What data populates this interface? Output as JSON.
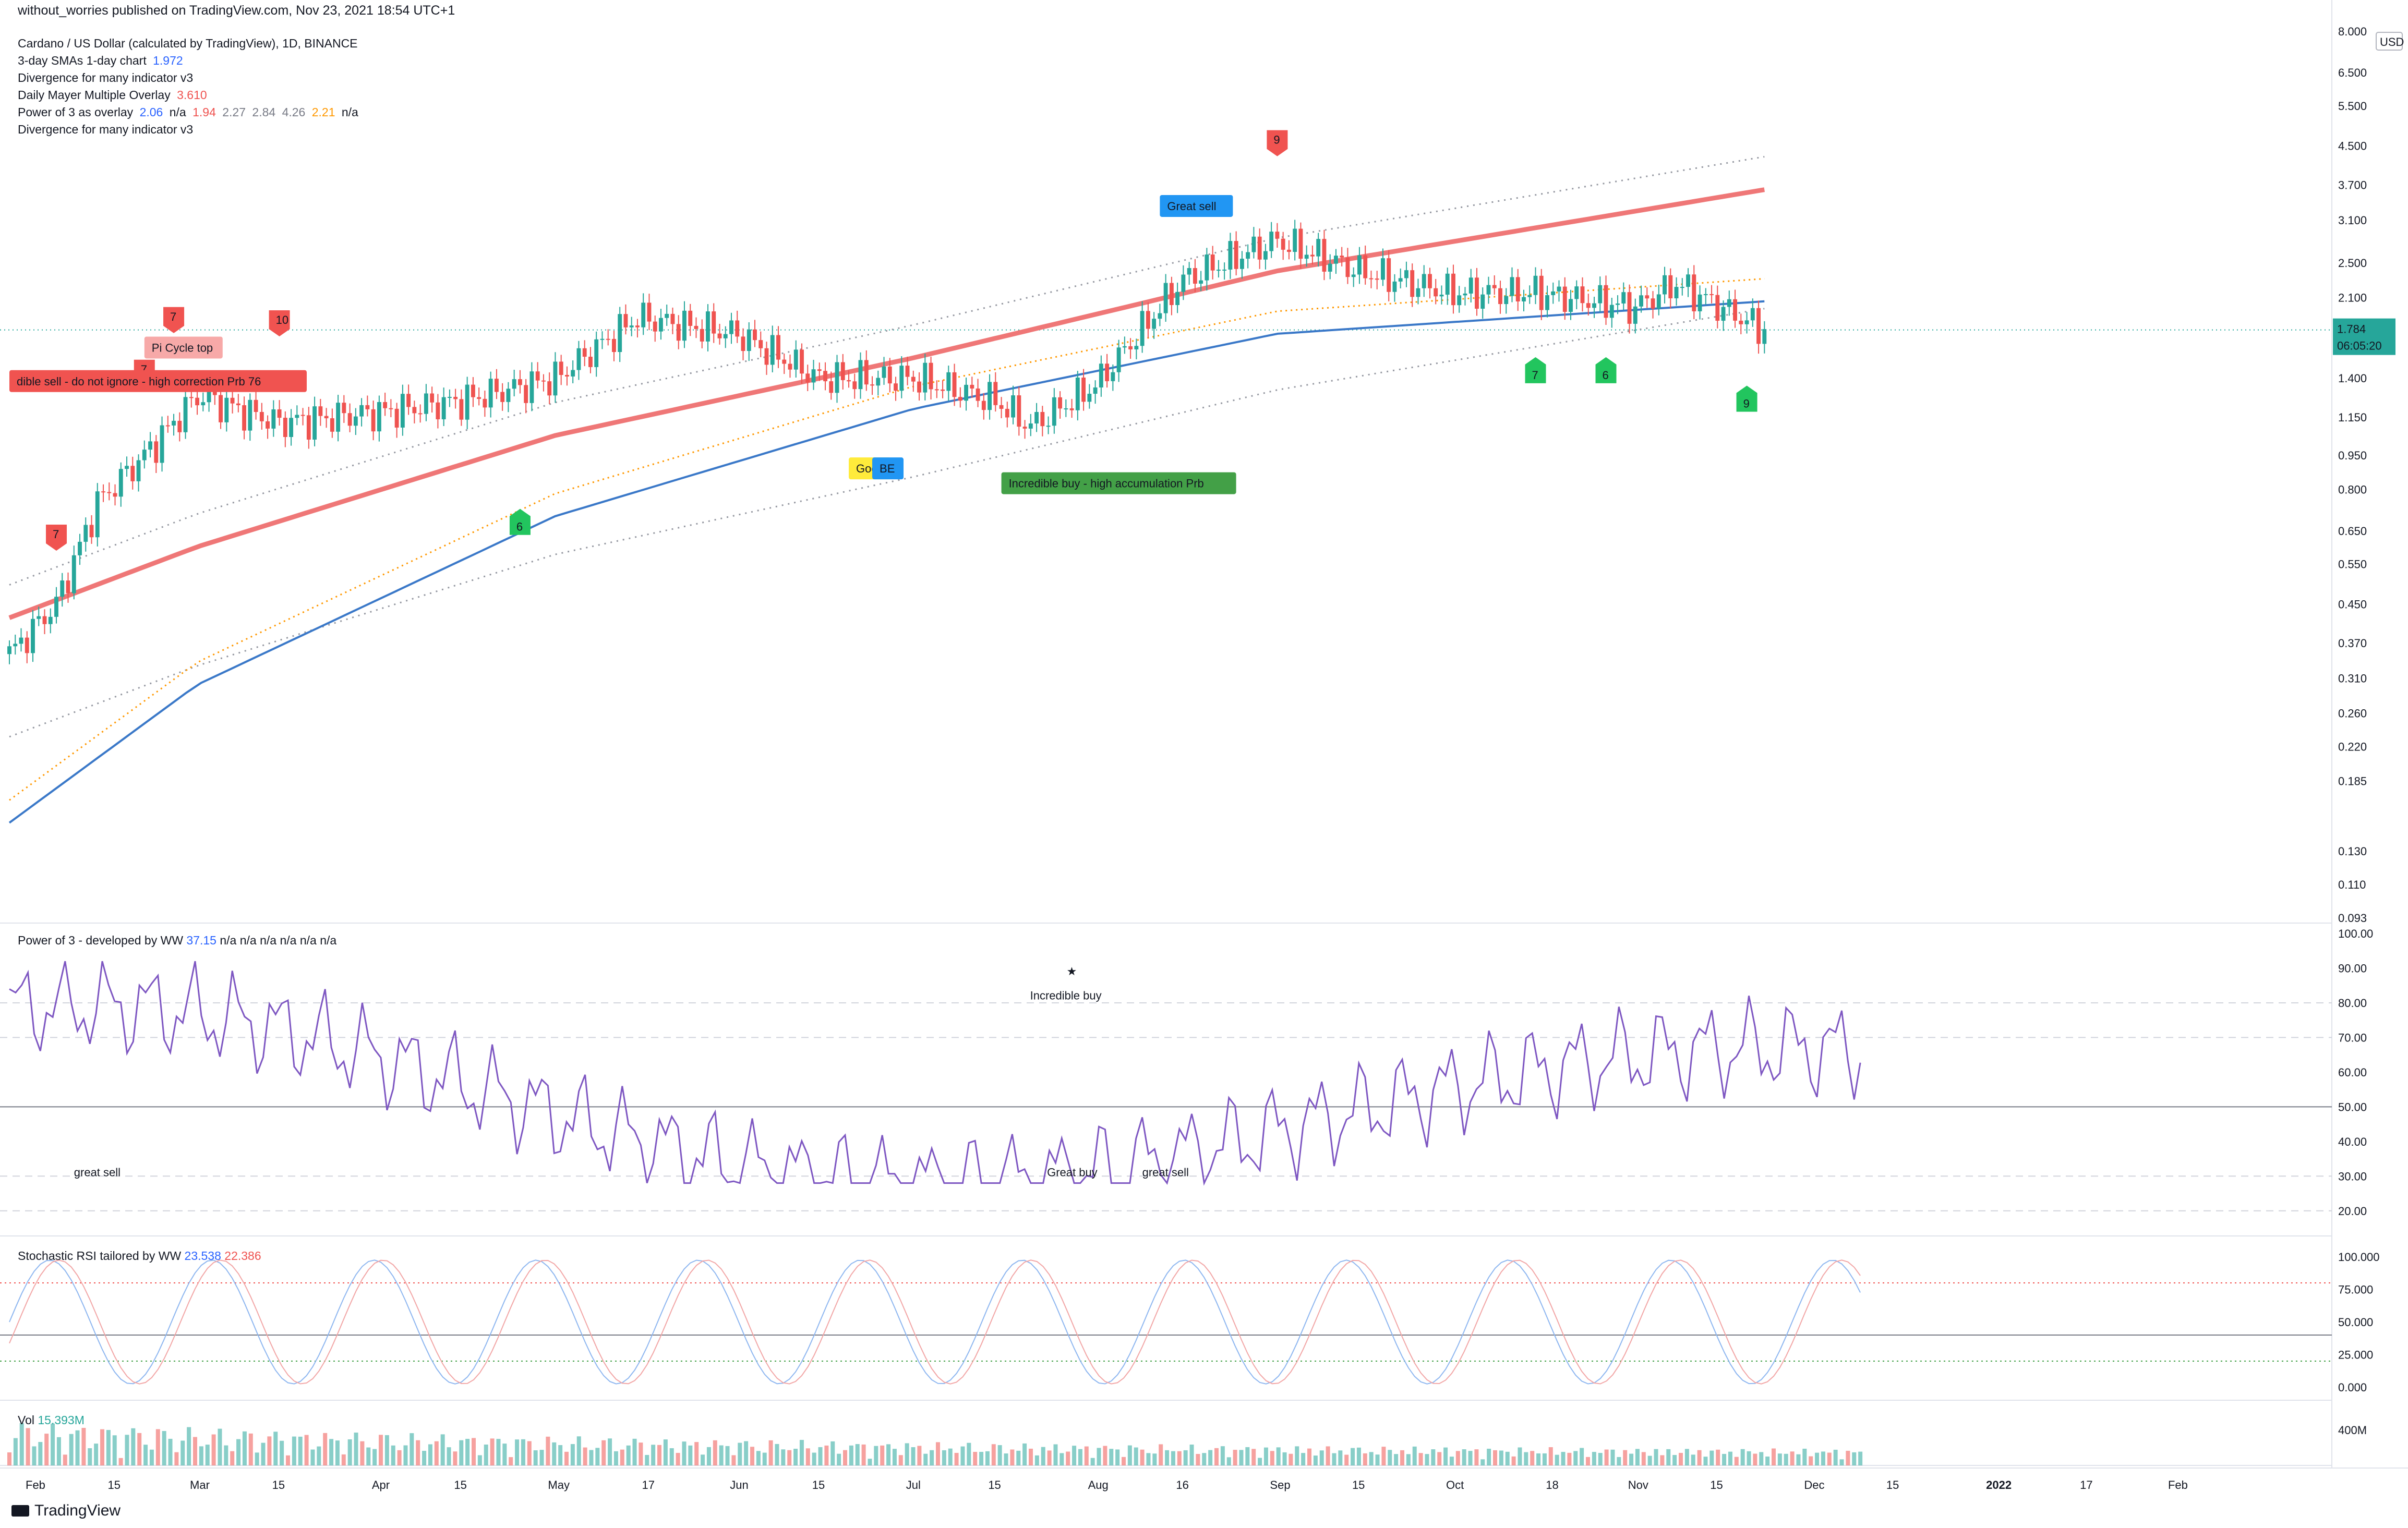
{
  "header": {
    "publisher": "without_worries published on TradingView.com, Nov 23, 2021 18:54 UTC+1"
  },
  "legend": {
    "symbol": "Cardano / US Dollar (calculated by TradingView), 1D, BINANCE",
    "sma_name": "3-day SMAs 1-day chart",
    "sma_value": "1.972",
    "div1": "Divergence for many indicator v3",
    "mayer_name": "Daily Mayer Multiple Overlay",
    "mayer_value": "3.610",
    "p3_name": "Power of 3 as overlay",
    "p3_values": [
      "2.06",
      "n/a",
      "1.94",
      "2.27",
      "2.84",
      "4.26",
      "2.21",
      "n/a"
    ],
    "div2": "Divergence for many indicator v3"
  },
  "price_axis": {
    "currency": "USD",
    "ticks": [
      "8.000",
      "6.500",
      "5.500",
      "4.500",
      "3.700",
      "3.100",
      "2.500",
      "2.100",
      "1.750",
      "1.400",
      "1.150",
      "0.950",
      "0.800",
      "0.650",
      "0.550",
      "0.450",
      "0.370",
      "0.310",
      "0.260",
      "0.220",
      "0.185",
      "0.130",
      "0.110",
      "0.093"
    ],
    "last_price": "1.784",
    "countdown": "06:05:20"
  },
  "time_axis": {
    "ticks": [
      "Feb",
      "15",
      "Mar",
      "15",
      "Apr",
      "15",
      "May",
      "17",
      "Jun",
      "15",
      "Jul",
      "15",
      "Aug",
      "16",
      "Sep",
      "15",
      "Oct",
      "18",
      "Nov",
      "15",
      "Dec",
      "15",
      "2022",
      "17",
      "Feb"
    ]
  },
  "signals": {
    "sell_markers": [
      "7",
      "7",
      "10",
      "7",
      "9"
    ],
    "buy_markers": [
      "6",
      "7",
      "6",
      "9"
    ],
    "labels": {
      "great_sell": "Great sell",
      "incredible_sell": "dible sell - do not ignore - high correction Prb 76",
      "pi_cycle": "Pi Cycle top",
      "good": "Goo",
      "be": "BE",
      "incredible_buy": "Incredible buy - high accumulation Prb"
    }
  },
  "power3": {
    "title": "Power of 3 - developed by WW",
    "value": "37.15",
    "extras": [
      "n/a",
      "n/a",
      "n/a",
      "n/a",
      "n/a",
      "n/a"
    ],
    "ticks": [
      "100.00",
      "90.00",
      "80.00",
      "70.00",
      "60.00",
      "50.00",
      "40.00",
      "30.00",
      "20.00"
    ],
    "annotations": {
      "incredible_buy": "Incredible buy",
      "great_sell_1": "great sell",
      "great_buy": "Great buy",
      "great_sell_2": "great sell"
    }
  },
  "stoch": {
    "title": "Stochastic RSI tailored by WW",
    "k": "23.538",
    "d": "22.386",
    "ticks": [
      "100.000",
      "75.000",
      "50.000",
      "25.000",
      "0.000"
    ]
  },
  "volume": {
    "title": "Vol",
    "value": "15.393M",
    "tick": "400M"
  },
  "branding": {
    "name": "TradingView"
  },
  "colors": {
    "up": "#26a69a",
    "down": "#ef5350",
    "mayer": "#ef7777",
    "sma200": "#3a78c8",
    "sell": "#f05350",
    "buy": "#22c55e",
    "accent": "#2962ff"
  },
  "chart_data": {
    "type": "line",
    "title": "Cardano / US Dollar (calculated by TradingView), 1D, BINANCE",
    "x_range": [
      "2021-01-28",
      "2022-02-25"
    ],
    "y_scale": "log",
    "ylim": [
      0.093,
      8.0
    ],
    "series": [
      {
        "name": "ADA/USD close",
        "x": [
          "2021-01-28",
          "2021-02-05",
          "2021-02-12",
          "2021-02-20",
          "2021-03-01",
          "2021-03-15",
          "2021-04-01",
          "2021-04-15",
          "2021-05-01",
          "2021-05-15",
          "2021-06-01",
          "2021-06-15",
          "2021-07-01",
          "2021-07-15",
          "2021-07-21",
          "2021-08-01",
          "2021-08-16",
          "2021-09-01",
          "2021-09-15",
          "2021-10-01",
          "2021-10-15",
          "2021-11-01",
          "2021-11-08",
          "2021-11-23"
        ],
        "values": [
          0.35,
          0.45,
          0.75,
          0.95,
          1.28,
          1.12,
          1.18,
          1.25,
          1.4,
          1.9,
          1.75,
          1.4,
          1.4,
          1.25,
          1.1,
          1.35,
          2.3,
          2.8,
          2.4,
          2.15,
          2.15,
          2.0,
          2.25,
          1.784
        ]
      },
      {
        "name": "Daily Mayer Multiple Overlay",
        "x": [
          "2021-01-28",
          "2021-03-01",
          "2021-05-01",
          "2021-07-01",
          "2021-09-01",
          "2021-11-23"
        ],
        "values": [
          0.42,
          0.6,
          1.05,
          1.55,
          2.4,
          3.61
        ]
      },
      {
        "name": "Power of 3 as overlay",
        "x": [
          "2021-01-28",
          "2021-03-01",
          "2021-05-01",
          "2021-07-01",
          "2021-09-01",
          "2021-11-23"
        ],
        "values": [
          0.15,
          0.3,
          0.7,
          1.2,
          1.75,
          2.06
        ]
      }
    ]
  }
}
